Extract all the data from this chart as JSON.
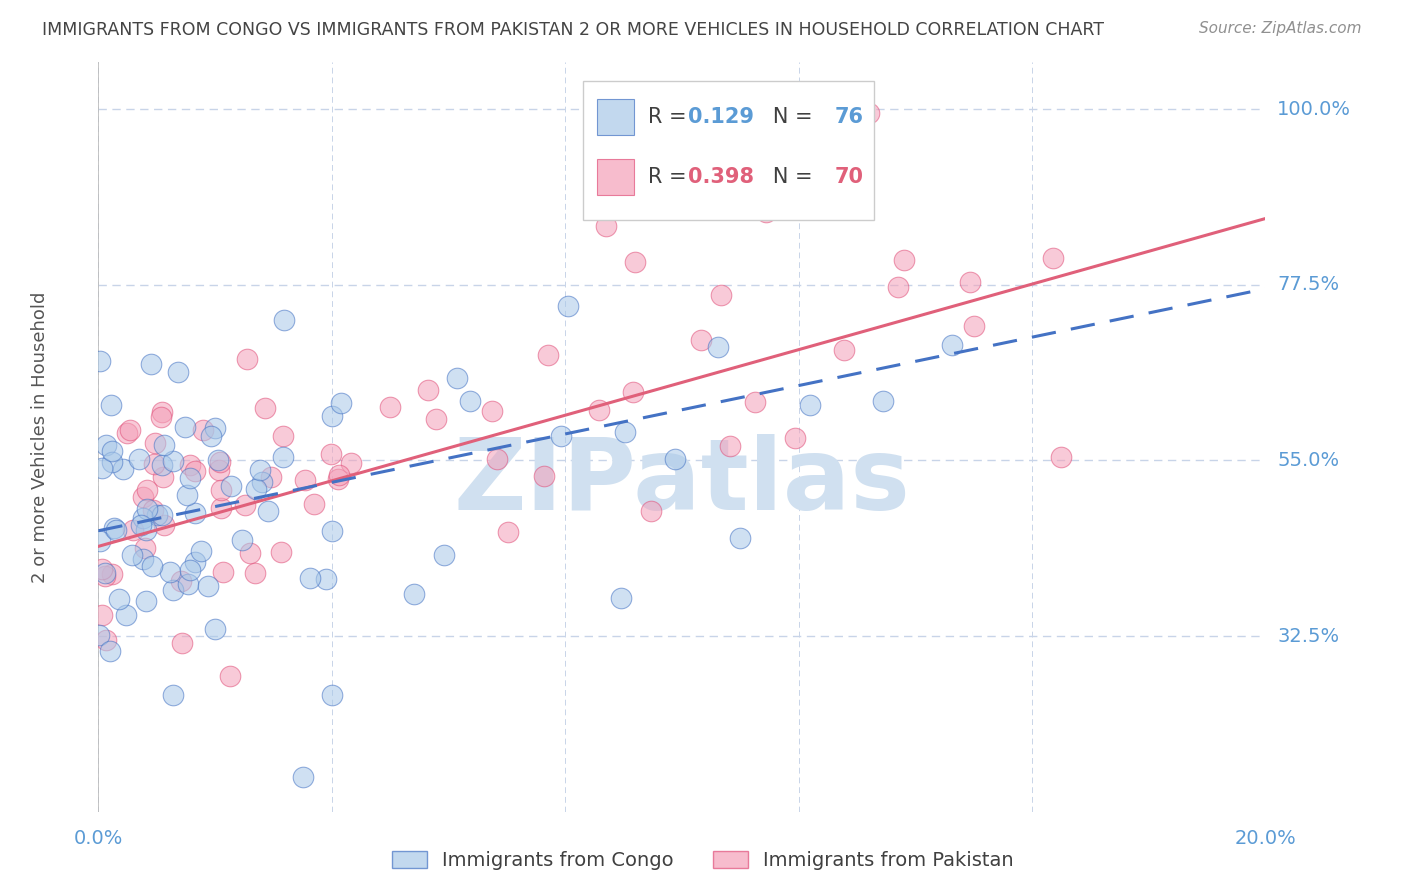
{
  "title": "IMMIGRANTS FROM CONGO VS IMMIGRANTS FROM PAKISTAN 2 OR MORE VEHICLES IN HOUSEHOLD CORRELATION CHART",
  "source": "Source: ZipAtlas.com",
  "ylabel": "2 or more Vehicles in Household",
  "xmin": 0.0,
  "xmax": 0.2,
  "ymin": 0.1,
  "ymax": 1.06,
  "ytick_values": [
    1.0,
    0.775,
    0.55,
    0.325
  ],
  "ytick_labels": [
    "100.0%",
    "77.5%",
    "55.0%",
    "32.5%"
  ],
  "xtick_values": [
    0.0,
    0.04,
    0.08,
    0.12,
    0.16,
    0.2
  ],
  "congo_R": 0.129,
  "congo_N": 76,
  "pakistan_R": 0.398,
  "pakistan_N": 70,
  "congo_face_color": "#a8c8e8",
  "congo_edge_color": "#4472c4",
  "pakistan_face_color": "#f4a0b8",
  "pakistan_edge_color": "#e0507a",
  "trendline_congo_color": "#4472c4",
  "trendline_pakistan_color": "#e0607a",
  "background_color": "#ffffff",
  "grid_color": "#c8d4e8",
  "axis_label_color": "#5b9bd5",
  "title_color": "#444444",
  "source_color": "#909090",
  "watermark_color": "#d0e0f0",
  "legend_label_congo": "Immigrants from Congo",
  "legend_label_pakistan": "Immigrants from Pakistan",
  "trendline_pakistan_intercept": 0.44,
  "trendline_pakistan_slope": 2.1,
  "trendline_congo_intercept": 0.46,
  "trendline_congo_slope": 1.55
}
